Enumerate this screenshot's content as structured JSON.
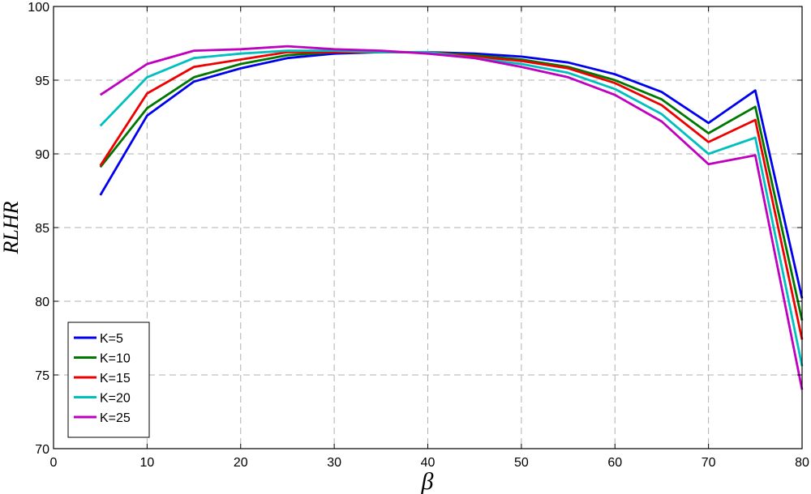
{
  "chart_data": {
    "type": "line",
    "title": "",
    "xlabel": "β",
    "ylabel": "RLHR",
    "xlim": [
      0,
      80
    ],
    "ylim": [
      70,
      100
    ],
    "xticks": [
      0,
      10,
      20,
      30,
      40,
      50,
      60,
      70,
      80
    ],
    "yticks": [
      70,
      75,
      80,
      85,
      90,
      95,
      100
    ],
    "grid": true,
    "legend_position": "bottom-left",
    "x": [
      5,
      10,
      15,
      20,
      25,
      30,
      35,
      40,
      45,
      50,
      55,
      60,
      65,
      70,
      75,
      80
    ],
    "series": [
      {
        "name": "K=5",
        "color": "#0000ee",
        "values": [
          87.2,
          92.6,
          94.9,
          95.8,
          96.5,
          96.8,
          96.9,
          96.9,
          96.8,
          96.6,
          96.2,
          95.4,
          94.2,
          92.1,
          94.3,
          80.2
        ]
      },
      {
        "name": "K=10",
        "color": "#007700",
        "values": [
          89.1,
          93.1,
          95.2,
          96.1,
          96.7,
          96.9,
          96.9,
          96.9,
          96.7,
          96.4,
          95.9,
          95.0,
          93.7,
          91.4,
          93.2,
          78.7
        ]
      },
      {
        "name": "K=15",
        "color": "#ee0000",
        "values": [
          89.2,
          94.1,
          95.9,
          96.4,
          96.9,
          96.9,
          96.9,
          96.9,
          96.6,
          96.3,
          95.8,
          94.8,
          93.3,
          90.8,
          92.3,
          77.4
        ]
      },
      {
        "name": "K=20",
        "color": "#00bfbf",
        "values": [
          91.9,
          95.2,
          96.5,
          96.8,
          97.0,
          97.0,
          96.9,
          96.9,
          96.5,
          96.1,
          95.5,
          94.4,
          92.7,
          90.0,
          91.1,
          75.6
        ]
      },
      {
        "name": "K=25",
        "color": "#bf00bf",
        "values": [
          94.0,
          96.1,
          97.0,
          97.1,
          97.3,
          97.1,
          97.0,
          96.8,
          96.5,
          95.9,
          95.2,
          94.0,
          92.2,
          89.3,
          89.9,
          74.0
        ]
      }
    ]
  }
}
